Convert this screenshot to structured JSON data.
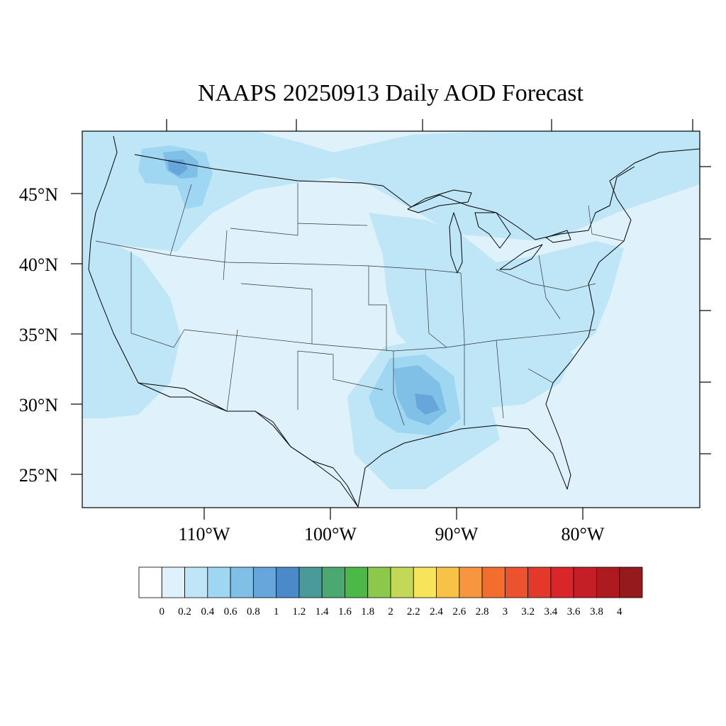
{
  "title": "NAAPS 20250913 Daily AOD Forecast",
  "map": {
    "lat_labels": [
      "45°N",
      "40°N",
      "35°N",
      "30°N",
      "25°N"
    ],
    "lon_labels": [
      "110°W",
      "100°W",
      "90°W",
      "80°W"
    ],
    "background_color": "#dff2fb",
    "border_color": "#000000"
  },
  "colorbar": {
    "colors": [
      "#ffffff",
      "#dff2fb",
      "#bee6f7",
      "#9fd7f3",
      "#80bfe6",
      "#66a6db",
      "#4a8ac9",
      "#4a9a9a",
      "#4aa870",
      "#4cb848",
      "#8cc84a",
      "#c4d857",
      "#f8e45a",
      "#f8c248",
      "#f7963e",
      "#f36d2e",
      "#ec522d",
      "#e4392a",
      "#d8262a",
      "#c41e26",
      "#ad1b20",
      "#941a1d"
    ],
    "labels": [
      "0",
      "0.2",
      "0.4",
      "0.6",
      "0.8",
      "1",
      "1.2",
      "1.4",
      "1.6",
      "1.8",
      "2",
      "2.2",
      "2.4",
      "2.6",
      "2.8",
      "3",
      "3.2",
      "3.4",
      "3.6",
      "3.8",
      "4"
    ]
  }
}
